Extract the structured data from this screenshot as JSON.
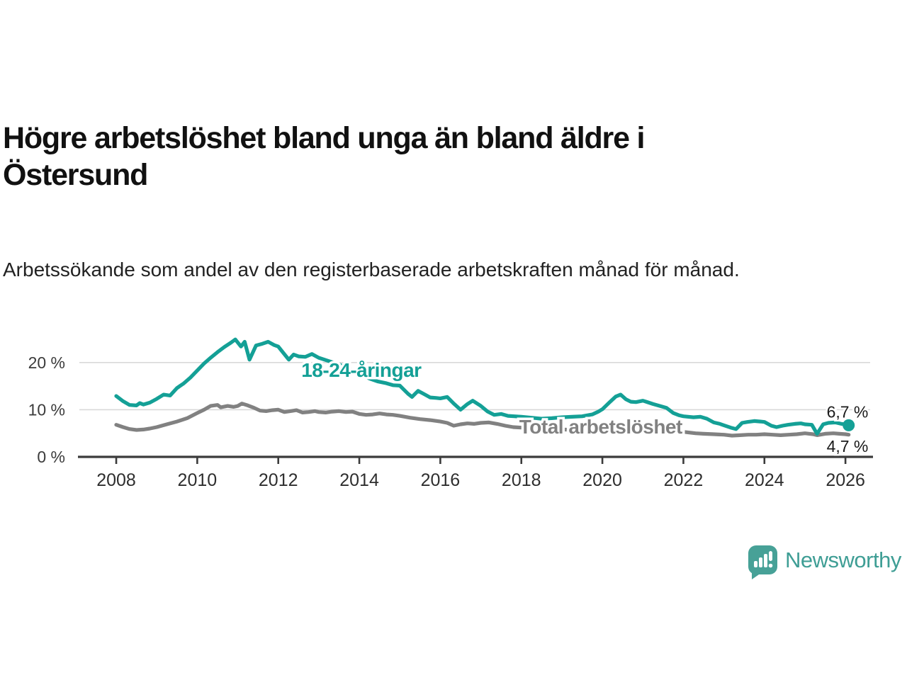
{
  "title": "Högre arbetslöshet bland unga än bland äldre i Östersund",
  "subtitle": "Arbetssökande som andel av den registerbaserade arbetskraften månad för månad.",
  "branding": {
    "name": "Newsworthy"
  },
  "colors": {
    "young_line": "#14a096",
    "total_line": "#818181",
    "grid": "#d9d9d9",
    "axis": "#3b3b3b",
    "annotation_text": "#1a1a1a",
    "brand_teal": "#3f9e95",
    "background": "#ffffff"
  },
  "chart_data": {
    "type": "line",
    "title": "Högre arbetslöshet bland unga än bland äldre i Östersund",
    "subtitle": "Arbetssökande som andel av den registerbaserade arbetskraften månad för månad.",
    "xlabel": "",
    "ylabel": "",
    "grid": "horizontal",
    "legend_position": "inline-labels",
    "xlim": [
      2007.09,
      2026.61
    ],
    "ylim": [
      0,
      28.5
    ],
    "x_ticks": [
      2008,
      2010,
      2012,
      2014,
      2016,
      2018,
      2020,
      2022,
      2024,
      2026
    ],
    "x_tick_labels": [
      "2008",
      "2010",
      "2012",
      "2014",
      "2016",
      "2018",
      "2020",
      "2022",
      "2024",
      "2026"
    ],
    "y_ticks": [
      0,
      10,
      20
    ],
    "y_tick_labels": [
      "0 %",
      "10 %",
      "20 %"
    ],
    "series": [
      {
        "name": "18-24-åringar",
        "color": "#14a096",
        "end_label": "6,7 %",
        "end_value": 6.7,
        "label_anchor": {
          "x": 2014.05,
          "y": 17.0
        },
        "end_label_anchor": {
          "x": 2026.05,
          "y": 8.3
        },
        "points": [
          [
            2008.0,
            12.9
          ],
          [
            2008.17,
            11.8
          ],
          [
            2008.33,
            11.0
          ],
          [
            2008.5,
            10.9
          ],
          [
            2008.58,
            11.4
          ],
          [
            2008.67,
            11.1
          ],
          [
            2008.83,
            11.5
          ],
          [
            2009.0,
            12.3
          ],
          [
            2009.17,
            13.2
          ],
          [
            2009.33,
            13.0
          ],
          [
            2009.5,
            14.6
          ],
          [
            2009.67,
            15.6
          ],
          [
            2009.83,
            16.8
          ],
          [
            2010.0,
            18.3
          ],
          [
            2010.17,
            19.8
          ],
          [
            2010.33,
            21.0
          ],
          [
            2010.5,
            22.2
          ],
          [
            2010.67,
            23.3
          ],
          [
            2010.83,
            24.2
          ],
          [
            2010.94,
            24.9
          ],
          [
            2011.08,
            23.4
          ],
          [
            2011.17,
            24.4
          ],
          [
            2011.29,
            20.6
          ],
          [
            2011.45,
            23.6
          ],
          [
            2011.58,
            23.9
          ],
          [
            2011.75,
            24.4
          ],
          [
            2011.9,
            23.7
          ],
          [
            2012.0,
            23.4
          ],
          [
            2012.13,
            22.0
          ],
          [
            2012.26,
            20.6
          ],
          [
            2012.38,
            21.7
          ],
          [
            2012.5,
            21.3
          ],
          [
            2012.67,
            21.2
          ],
          [
            2012.83,
            21.8
          ],
          [
            2013.0,
            21.0
          ],
          [
            2013.25,
            20.3
          ],
          [
            2013.5,
            19.6
          ],
          [
            2013.75,
            18.6
          ],
          [
            2014.0,
            17.6
          ],
          [
            2014.25,
            16.6
          ],
          [
            2014.45,
            16.0
          ],
          [
            2014.67,
            15.6
          ],
          [
            2014.83,
            15.2
          ],
          [
            2015.0,
            15.1
          ],
          [
            2015.2,
            13.4
          ],
          [
            2015.3,
            12.7
          ],
          [
            2015.45,
            14.0
          ],
          [
            2015.6,
            13.3
          ],
          [
            2015.75,
            12.6
          ],
          [
            2015.9,
            12.5
          ],
          [
            2016.0,
            12.4
          ],
          [
            2016.17,
            12.7
          ],
          [
            2016.33,
            11.3
          ],
          [
            2016.5,
            10.0
          ],
          [
            2016.67,
            11.2
          ],
          [
            2016.8,
            11.9
          ],
          [
            2017.0,
            10.8
          ],
          [
            2017.17,
            9.6
          ],
          [
            2017.33,
            8.9
          ],
          [
            2017.5,
            9.1
          ],
          [
            2017.67,
            8.7
          ],
          [
            2017.83,
            8.6
          ],
          [
            2018.0,
            8.5
          ],
          [
            2018.25,
            8.3
          ],
          [
            2018.5,
            8.1
          ],
          [
            2018.75,
            8.2
          ],
          [
            2019.0,
            8.4
          ],
          [
            2019.25,
            8.5
          ],
          [
            2019.5,
            8.6
          ],
          [
            2019.75,
            9.0
          ],
          [
            2019.9,
            9.6
          ],
          [
            2020.0,
            10.1
          ],
          [
            2020.17,
            11.5
          ],
          [
            2020.33,
            12.8
          ],
          [
            2020.45,
            13.2
          ],
          [
            2020.58,
            12.2
          ],
          [
            2020.7,
            11.7
          ],
          [
            2020.83,
            11.6
          ],
          [
            2021.0,
            11.9
          ],
          [
            2021.08,
            11.7
          ],
          [
            2021.25,
            11.2
          ],
          [
            2021.42,
            10.8
          ],
          [
            2021.58,
            10.4
          ],
          [
            2021.75,
            9.3
          ],
          [
            2021.9,
            8.8
          ],
          [
            2022.0,
            8.6
          ],
          [
            2022.25,
            8.4
          ],
          [
            2022.42,
            8.5
          ],
          [
            2022.58,
            8.1
          ],
          [
            2022.75,
            7.3
          ],
          [
            2022.9,
            7.0
          ],
          [
            2023.0,
            6.7
          ],
          [
            2023.17,
            6.2
          ],
          [
            2023.3,
            5.9
          ],
          [
            2023.45,
            7.2
          ],
          [
            2023.58,
            7.4
          ],
          [
            2023.75,
            7.6
          ],
          [
            2023.9,
            7.5
          ],
          [
            2024.0,
            7.4
          ],
          [
            2024.17,
            6.6
          ],
          [
            2024.3,
            6.3
          ],
          [
            2024.45,
            6.6
          ],
          [
            2024.58,
            6.8
          ],
          [
            2024.75,
            7.0
          ],
          [
            2024.9,
            7.1
          ],
          [
            2025.0,
            6.9
          ],
          [
            2025.17,
            6.8
          ],
          [
            2025.3,
            4.9
          ],
          [
            2025.45,
            6.9
          ],
          [
            2025.58,
            7.2
          ],
          [
            2025.75,
            7.3
          ],
          [
            2025.9,
            7.0
          ],
          [
            2026.0,
            6.9
          ],
          [
            2026.08,
            6.7
          ]
        ]
      },
      {
        "name": "Total arbetslöshet",
        "color": "#818181",
        "end_label": "4,7 %",
        "end_value": 4.7,
        "label_anchor": {
          "x": 2019.96,
          "y": 4.95
        },
        "end_label_anchor": {
          "x": 2026.05,
          "y": 1.05
        },
        "points": [
          [
            2008.0,
            6.8
          ],
          [
            2008.17,
            6.3
          ],
          [
            2008.33,
            5.9
          ],
          [
            2008.5,
            5.7
          ],
          [
            2008.67,
            5.8
          ],
          [
            2008.83,
            6.0
          ],
          [
            2009.0,
            6.3
          ],
          [
            2009.25,
            6.9
          ],
          [
            2009.5,
            7.5
          ],
          [
            2009.75,
            8.2
          ],
          [
            2010.0,
            9.3
          ],
          [
            2010.17,
            10.0
          ],
          [
            2010.33,
            10.8
          ],
          [
            2010.5,
            11.0
          ],
          [
            2010.58,
            10.5
          ],
          [
            2010.75,
            10.8
          ],
          [
            2010.9,
            10.6
          ],
          [
            2011.0,
            10.8
          ],
          [
            2011.1,
            11.3
          ],
          [
            2011.25,
            10.9
          ],
          [
            2011.4,
            10.4
          ],
          [
            2011.55,
            9.8
          ],
          [
            2011.7,
            9.7
          ],
          [
            2011.85,
            9.9
          ],
          [
            2012.0,
            10.0
          ],
          [
            2012.15,
            9.5
          ],
          [
            2012.3,
            9.7
          ],
          [
            2012.45,
            9.9
          ],
          [
            2012.6,
            9.4
          ],
          [
            2012.75,
            9.5
          ],
          [
            2012.9,
            9.7
          ],
          [
            2013.0,
            9.5
          ],
          [
            2013.17,
            9.4
          ],
          [
            2013.33,
            9.6
          ],
          [
            2013.5,
            9.7
          ],
          [
            2013.67,
            9.5
          ],
          [
            2013.83,
            9.6
          ],
          [
            2014.0,
            9.1
          ],
          [
            2014.17,
            8.9
          ],
          [
            2014.33,
            9.0
          ],
          [
            2014.5,
            9.2
          ],
          [
            2014.67,
            9.0
          ],
          [
            2014.83,
            8.9
          ],
          [
            2015.0,
            8.7
          ],
          [
            2015.25,
            8.3
          ],
          [
            2015.5,
            8.0
          ],
          [
            2015.75,
            7.8
          ],
          [
            2016.0,
            7.5
          ],
          [
            2016.17,
            7.2
          ],
          [
            2016.33,
            6.6
          ],
          [
            2016.5,
            6.9
          ],
          [
            2016.67,
            7.1
          ],
          [
            2016.83,
            7.0
          ],
          [
            2017.0,
            7.2
          ],
          [
            2017.2,
            7.3
          ],
          [
            2017.4,
            7.0
          ],
          [
            2017.6,
            6.6
          ],
          [
            2017.8,
            6.3
          ],
          [
            2018.0,
            6.2
          ],
          [
            2018.5,
            6.0
          ],
          [
            2019.0,
            5.8
          ],
          [
            2019.5,
            5.7
          ],
          [
            2020.0,
            6.1
          ],
          [
            2020.4,
            6.6
          ],
          [
            2020.8,
            6.4
          ],
          [
            2021.0,
            6.3
          ],
          [
            2021.5,
            5.8
          ],
          [
            2022.0,
            5.3
          ],
          [
            2022.3,
            5.0
          ],
          [
            2022.5,
            4.9
          ],
          [
            2022.75,
            4.8
          ],
          [
            2023.0,
            4.7
          ],
          [
            2023.2,
            4.5
          ],
          [
            2023.4,
            4.6
          ],
          [
            2023.6,
            4.7
          ],
          [
            2023.8,
            4.7
          ],
          [
            2024.0,
            4.8
          ],
          [
            2024.2,
            4.7
          ],
          [
            2024.4,
            4.6
          ],
          [
            2024.6,
            4.7
          ],
          [
            2024.8,
            4.8
          ],
          [
            2025.0,
            5.0
          ],
          [
            2025.2,
            4.8
          ],
          [
            2025.3,
            4.6
          ],
          [
            2025.5,
            4.9
          ],
          [
            2025.7,
            5.0
          ],
          [
            2025.85,
            4.9
          ],
          [
            2026.0,
            4.8
          ],
          [
            2026.08,
            4.7
          ]
        ]
      }
    ]
  }
}
